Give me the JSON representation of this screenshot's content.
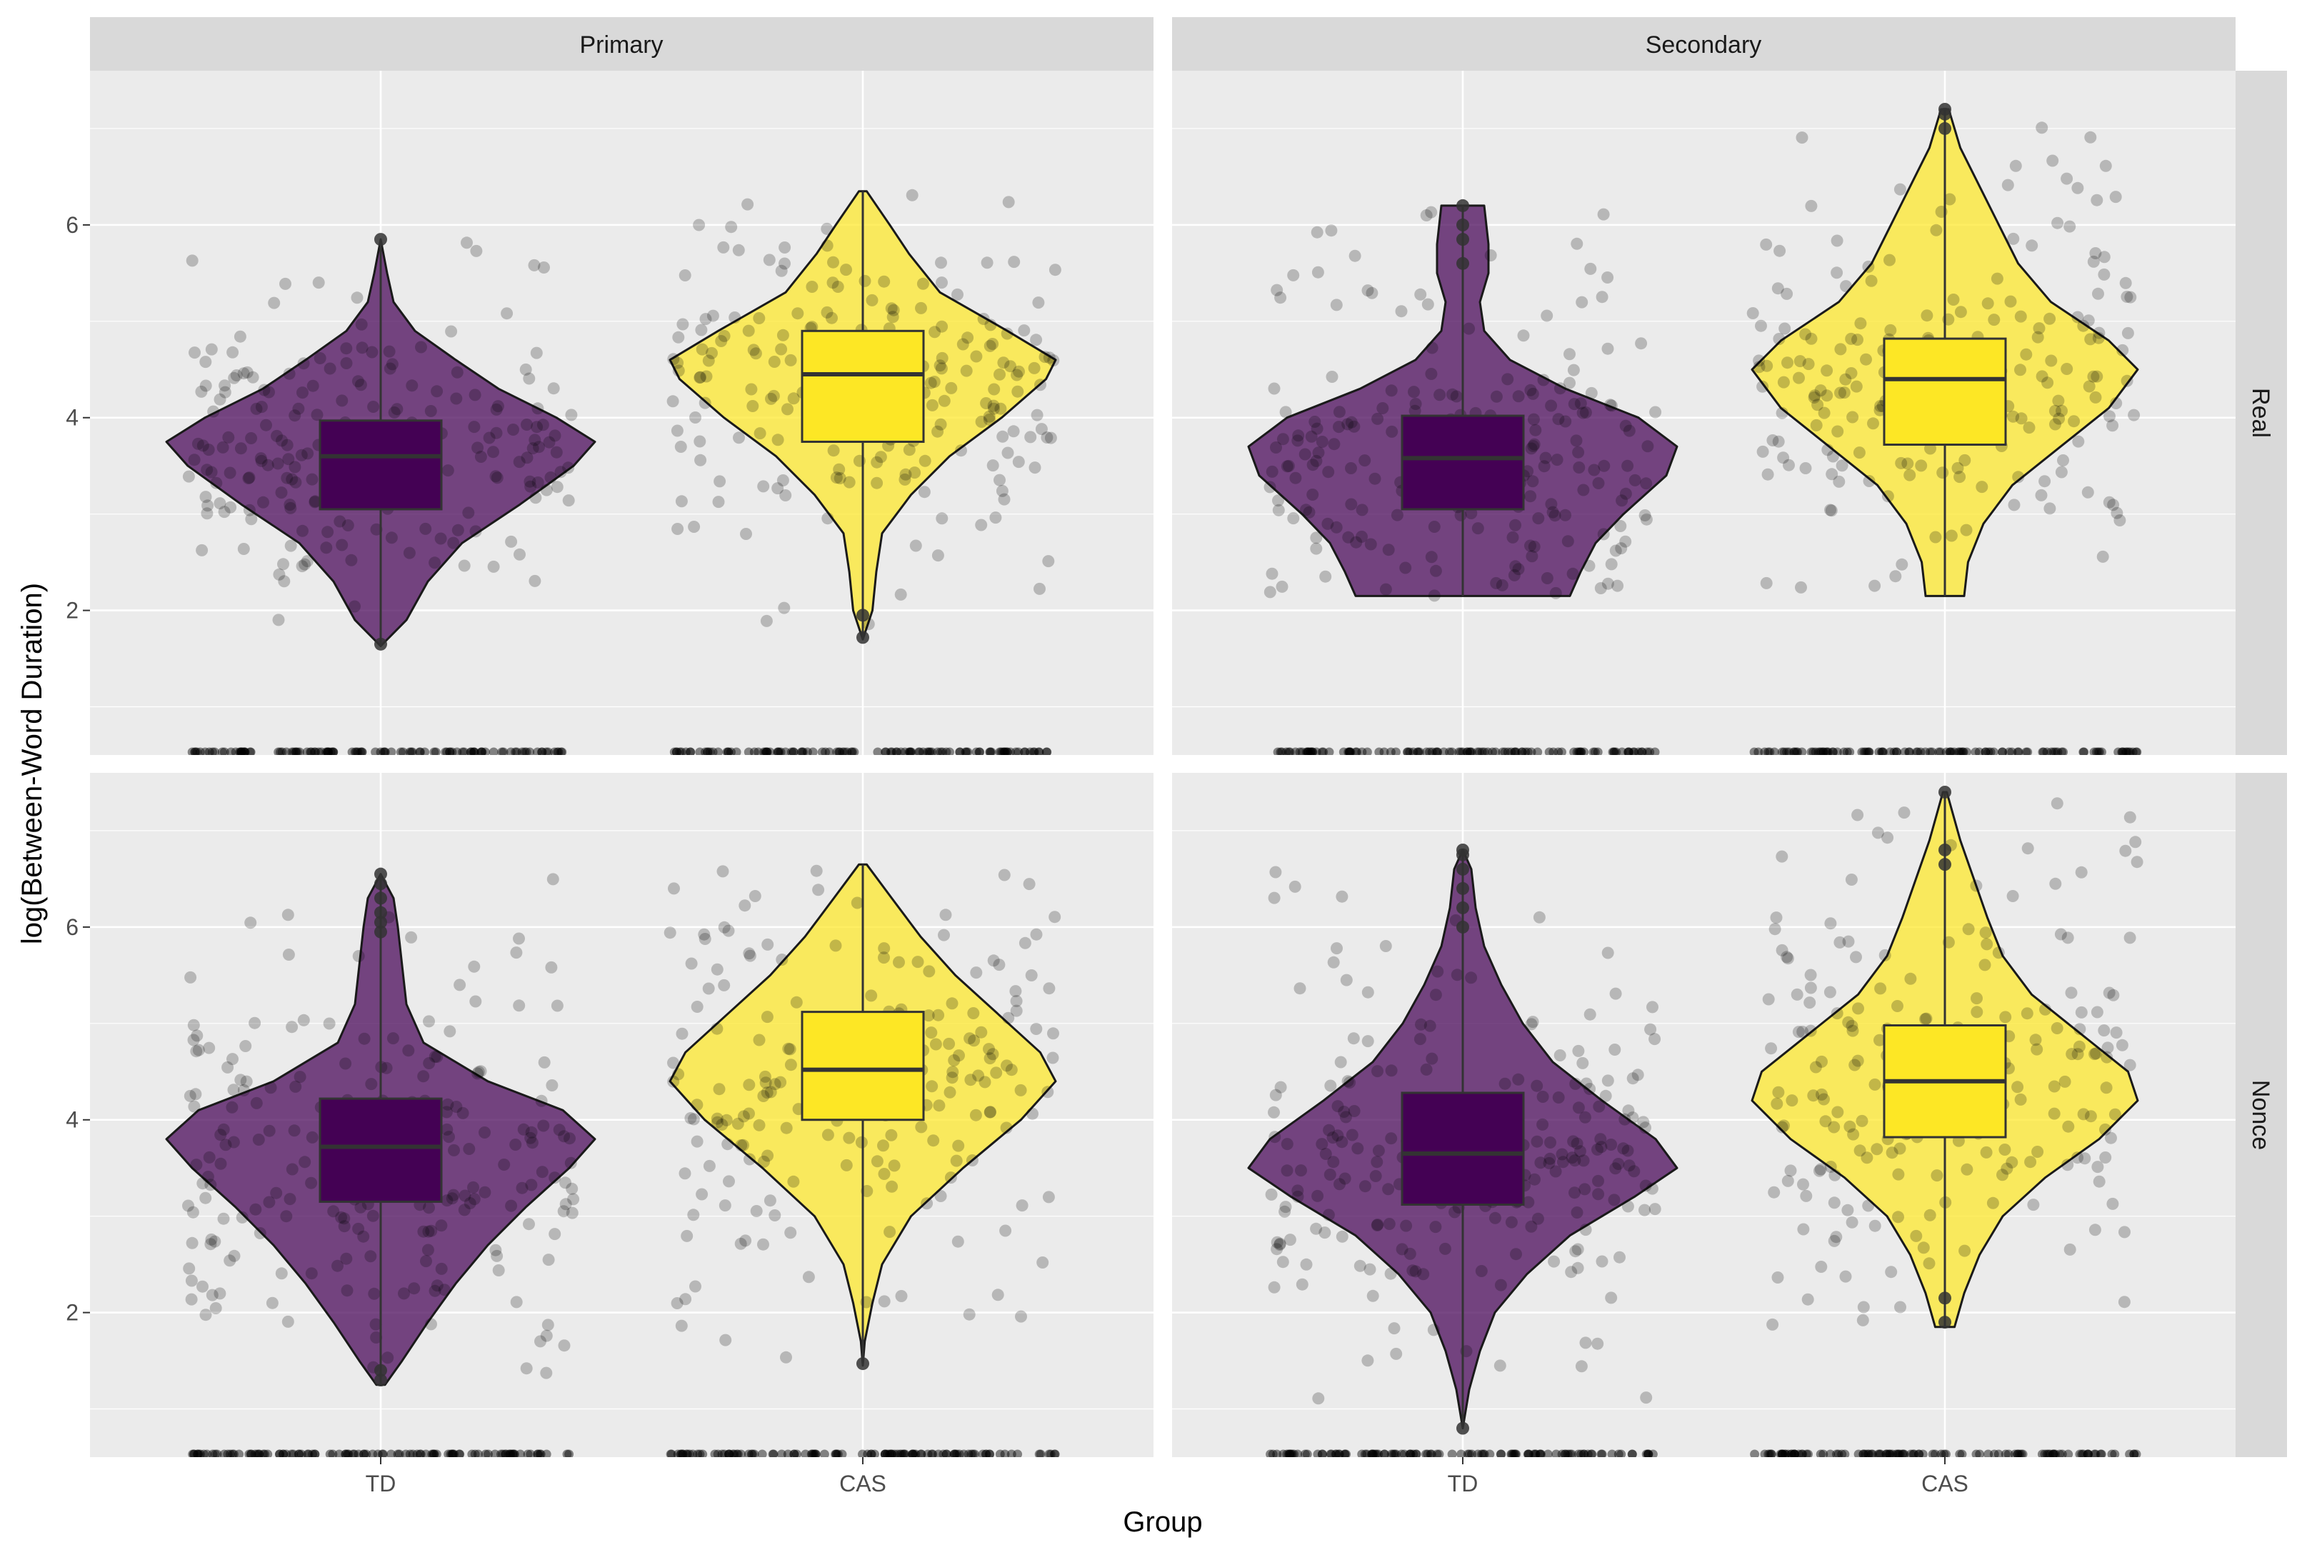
{
  "chart_data": {
    "type": "violin",
    "title": "",
    "xlabel": "Group",
    "ylabel": "log(Between-Word Duration)",
    "categories": [
      "TD",
      "CAS"
    ],
    "colors": {
      "TD": "#440154",
      "CAS": "#FDE725"
    },
    "panel_bg": "#EBEBEB",
    "strip_bg": "#D9D9D9",
    "columns": [
      "Primary",
      "Secondary"
    ],
    "rows": [
      "Real",
      "Nonce"
    ],
    "ylim": [
      0.5,
      7.6
    ],
    "yticks": [
      2,
      4,
      6
    ],
    "ytick_labels": [
      "2",
      "4",
      "6"
    ],
    "floor_value": 0.5,
    "panels": [
      {
        "column": "Primary",
        "row": "Real",
        "groups": [
          {
            "name": "TD",
            "min": 1.63,
            "q1": 3.05,
            "median": 3.6,
            "q3": 3.97,
            "max": 5.85,
            "violin": [
              [
                1.63,
                0.0
              ],
              [
                1.9,
                0.12
              ],
              [
                2.3,
                0.22
              ],
              [
                2.7,
                0.38
              ],
              [
                3.1,
                0.65
              ],
              [
                3.5,
                0.9
              ],
              [
                3.75,
                1.0
              ],
              [
                4.0,
                0.82
              ],
              [
                4.3,
                0.55
              ],
              [
                4.6,
                0.35
              ],
              [
                4.9,
                0.16
              ],
              [
                5.2,
                0.06
              ],
              [
                5.5,
                0.03
              ],
              [
                5.85,
                0.0
              ]
            ],
            "outliers": [
              1.65,
              5.85
            ]
          },
          {
            "name": "CAS",
            "min": 1.7,
            "q1": 3.75,
            "median": 4.45,
            "q3": 4.9,
            "max": 6.35,
            "violin": [
              [
                1.7,
                0.0
              ],
              [
                2.0,
                0.05
              ],
              [
                2.4,
                0.07
              ],
              [
                2.8,
                0.1
              ],
              [
                3.2,
                0.25
              ],
              [
                3.6,
                0.45
              ],
              [
                4.0,
                0.72
              ],
              [
                4.4,
                0.95
              ],
              [
                4.6,
                1.0
              ],
              [
                4.9,
                0.75
              ],
              [
                5.3,
                0.4
              ],
              [
                5.7,
                0.24
              ],
              [
                6.0,
                0.14
              ],
              [
                6.35,
                0.02
              ]
            ],
            "outliers": [
              1.72,
              1.95
            ]
          }
        ]
      },
      {
        "column": "Secondary",
        "row": "Real",
        "groups": [
          {
            "name": "TD",
            "min": 2.15,
            "q1": 3.05,
            "median": 3.58,
            "q3": 4.02,
            "max": 6.2,
            "violin": [
              [
                2.15,
                0.5
              ],
              [
                2.4,
                0.55
              ],
              [
                2.7,
                0.62
              ],
              [
                3.0,
                0.75
              ],
              [
                3.4,
                0.95
              ],
              [
                3.7,
                1.0
              ],
              [
                4.0,
                0.82
              ],
              [
                4.3,
                0.48
              ],
              [
                4.6,
                0.22
              ],
              [
                4.9,
                0.1
              ],
              [
                5.2,
                0.08
              ],
              [
                5.5,
                0.12
              ],
              [
                5.8,
                0.12
              ],
              [
                6.2,
                0.1
              ]
            ],
            "outliers": [
              5.6,
              5.85,
              6.0,
              6.2
            ]
          },
          {
            "name": "CAS",
            "min": 2.15,
            "q1": 3.72,
            "median": 4.4,
            "q3": 4.82,
            "max": 7.2,
            "violin": [
              [
                2.15,
                0.1
              ],
              [
                2.5,
                0.12
              ],
              [
                2.9,
                0.2
              ],
              [
                3.3,
                0.35
              ],
              [
                3.7,
                0.6
              ],
              [
                4.1,
                0.85
              ],
              [
                4.5,
                1.0
              ],
              [
                4.8,
                0.85
              ],
              [
                5.2,
                0.55
              ],
              [
                5.6,
                0.38
              ],
              [
                6.0,
                0.28
              ],
              [
                6.4,
                0.18
              ],
              [
                6.8,
                0.08
              ],
              [
                7.2,
                0.02
              ]
            ],
            "outliers": [
              7.0,
              7.15,
              7.2
            ]
          }
        ]
      },
      {
        "column": "Primary",
        "row": "Nonce",
        "groups": [
          {
            "name": "TD",
            "min": 1.25,
            "q1": 3.15,
            "median": 3.72,
            "q3": 4.22,
            "max": 6.55,
            "violin": [
              [
                1.25,
                0.02
              ],
              [
                1.5,
                0.1
              ],
              [
                1.9,
                0.22
              ],
              [
                2.3,
                0.35
              ],
              [
                2.7,
                0.5
              ],
              [
                3.1,
                0.68
              ],
              [
                3.5,
                0.88
              ],
              [
                3.8,
                1.0
              ],
              [
                4.1,
                0.85
              ],
              [
                4.4,
                0.5
              ],
              [
                4.8,
                0.2
              ],
              [
                5.2,
                0.12
              ],
              [
                5.6,
                0.1
              ],
              [
                6.0,
                0.08
              ],
              [
                6.3,
                0.06
              ],
              [
                6.55,
                0.0
              ]
            ],
            "outliers": [
              1.3,
              1.4,
              5.95,
              6.05,
              6.15,
              6.3,
              6.45,
              6.55
            ]
          },
          {
            "name": "CAS",
            "min": 1.45,
            "q1": 4.0,
            "median": 4.52,
            "q3": 5.12,
            "max": 6.65,
            "violin": [
              [
                1.45,
                0.0
              ],
              [
                1.7,
                0.01
              ],
              [
                2.1,
                0.05
              ],
              [
                2.5,
                0.1
              ],
              [
                3.0,
                0.25
              ],
              [
                3.5,
                0.52
              ],
              [
                4.0,
                0.82
              ],
              [
                4.4,
                1.0
              ],
              [
                4.7,
                0.92
              ],
              [
                5.1,
                0.7
              ],
              [
                5.5,
                0.48
              ],
              [
                5.9,
                0.3
              ],
              [
                6.3,
                0.15
              ],
              [
                6.65,
                0.02
              ]
            ],
            "outliers": [
              1.47
            ]
          }
        ]
      },
      {
        "column": "Secondary",
        "row": "Nonce",
        "groups": [
          {
            "name": "TD",
            "min": 0.8,
            "q1": 3.12,
            "median": 3.65,
            "q3": 4.28,
            "max": 6.8,
            "violin": [
              [
                0.8,
                0.0
              ],
              [
                1.2,
                0.03
              ],
              [
                1.6,
                0.08
              ],
              [
                2.0,
                0.15
              ],
              [
                2.4,
                0.3
              ],
              [
                2.8,
                0.5
              ],
              [
                3.2,
                0.8
              ],
              [
                3.5,
                1.0
              ],
              [
                3.8,
                0.9
              ],
              [
                4.2,
                0.65
              ],
              [
                4.6,
                0.42
              ],
              [
                5.0,
                0.28
              ],
              [
                5.4,
                0.18
              ],
              [
                5.8,
                0.1
              ],
              [
                6.2,
                0.06
              ],
              [
                6.6,
                0.04
              ],
              [
                6.8,
                0.0
              ]
            ],
            "outliers": [
              0.8,
              6.0,
              6.2,
              6.4,
              6.6,
              6.75,
              6.8
            ]
          },
          {
            "name": "CAS",
            "min": 1.85,
            "q1": 3.82,
            "median": 4.4,
            "q3": 4.98,
            "max": 7.4,
            "violin": [
              [
                1.85,
                0.05
              ],
              [
                2.2,
                0.1
              ],
              [
                2.6,
                0.18
              ],
              [
                3.0,
                0.3
              ],
              [
                3.4,
                0.52
              ],
              [
                3.8,
                0.8
              ],
              [
                4.2,
                1.0
              ],
              [
                4.5,
                0.95
              ],
              [
                4.9,
                0.7
              ],
              [
                5.3,
                0.45
              ],
              [
                5.7,
                0.3
              ],
              [
                6.1,
                0.22
              ],
              [
                6.5,
                0.15
              ],
              [
                6.9,
                0.08
              ],
              [
                7.4,
                0.01
              ]
            ],
            "outliers": [
              1.9,
              2.15,
              6.65,
              6.8,
              7.4
            ]
          }
        ]
      }
    ]
  }
}
